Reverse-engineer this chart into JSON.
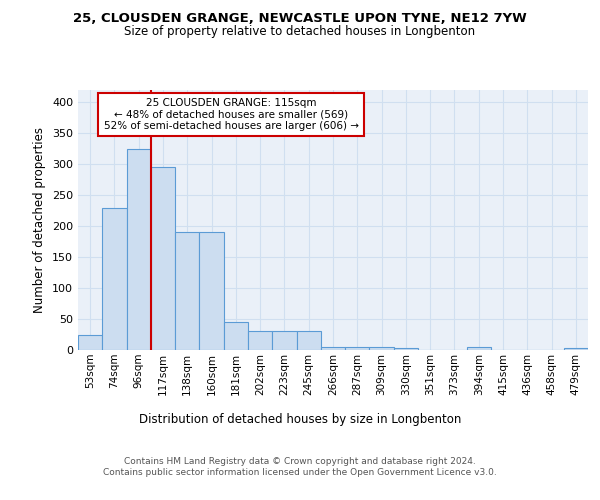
{
  "title": "25, CLOUSDEN GRANGE, NEWCASTLE UPON TYNE, NE12 7YW",
  "subtitle": "Size of property relative to detached houses in Longbenton",
  "xlabel": "Distribution of detached houses by size in Longbenton",
  "ylabel": "Number of detached properties",
  "bar_labels": [
    "53sqm",
    "74sqm",
    "96sqm",
    "117sqm",
    "138sqm",
    "160sqm",
    "181sqm",
    "202sqm",
    "223sqm",
    "245sqm",
    "266sqm",
    "287sqm",
    "309sqm",
    "330sqm",
    "351sqm",
    "373sqm",
    "394sqm",
    "415sqm",
    "436sqm",
    "458sqm",
    "479sqm"
  ],
  "bar_values": [
    25,
    230,
    325,
    295,
    190,
    190,
    45,
    30,
    30,
    30,
    5,
    5,
    5,
    3,
    0,
    0,
    5,
    0,
    0,
    0,
    3
  ],
  "bar_color": "#ccddf0",
  "bar_edge_color": "#5b9bd5",
  "grid_color": "#d0dff0",
  "background_color": "#eaf0f8",
  "vline_x": 2.5,
  "vline_color": "#cc0000",
  "annotation_box_text": "25 CLOUSDEN GRANGE: 115sqm\n← 48% of detached houses are smaller (569)\n52% of semi-detached houses are larger (606) →",
  "annotation_box_color": "#ffffff",
  "annotation_box_edge_color": "#cc0000",
  "footer_text": "Contains HM Land Registry data © Crown copyright and database right 2024.\nContains public sector information licensed under the Open Government Licence v3.0.",
  "ylim": [
    0,
    420
  ],
  "yticks": [
    0,
    50,
    100,
    150,
    200,
    250,
    300,
    350,
    400
  ]
}
